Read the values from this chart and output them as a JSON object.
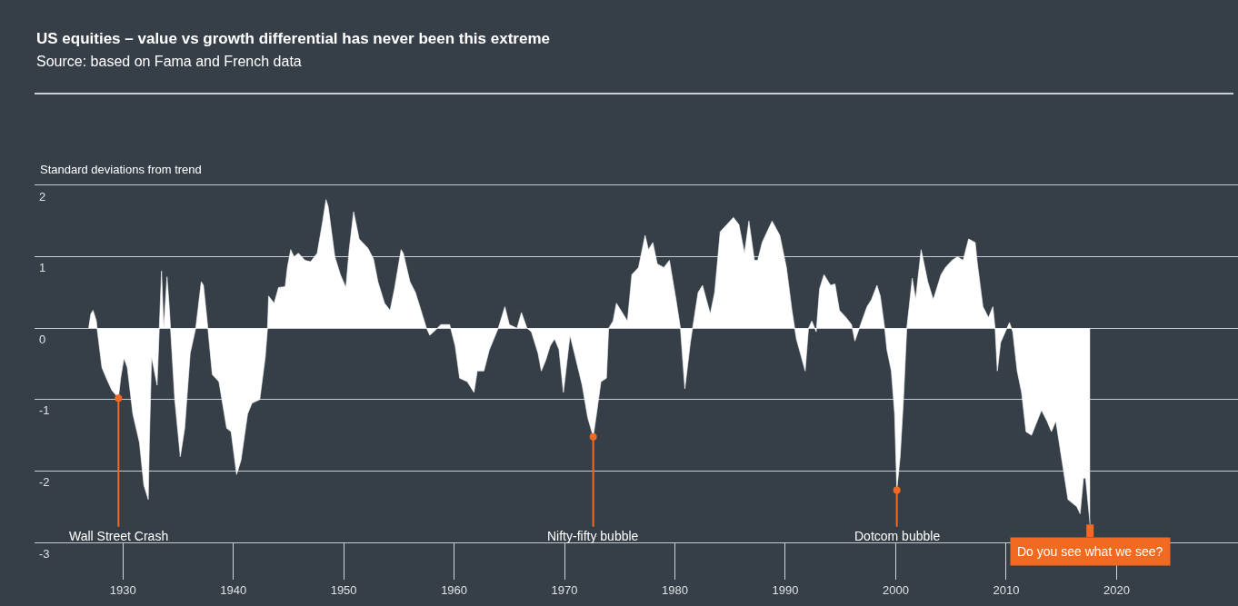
{
  "chart_data": {
    "type": "area",
    "title": "US equities – value vs growth differential has never been this extreme",
    "subtitle": "Source: based on Fama and French data",
    "ylabel": "Standard deviations from trend",
    "x": [
      1926.9,
      1927.1,
      1927.3,
      1927.6,
      1927.7,
      1928.1,
      1928.5,
      1929.0,
      1929.6,
      1929.8,
      1930.1,
      1930.4,
      1930.9,
      1931.5,
      1931.9,
      1932.3,
      1932.4,
      1932.6,
      1933.1,
      1933.3,
      1933.5,
      1933.7,
      1934.0,
      1934.2,
      1934.7,
      1935.2,
      1935.6,
      1936.1,
      1936.6,
      1937.1,
      1937.3,
      1937.7,
      1938.1,
      1938.7,
      1939.4,
      1939.8,
      1940.3,
      1940.7,
      1941.3,
      1941.7,
      1942.4,
      1942.9,
      1943.1,
      1943.2,
      1943.7,
      1944.1,
      1944.7,
      1944.9,
      1945.2,
      1945.5,
      1945.9,
      1946.5,
      1947.0,
      1947.6,
      1948.1,
      1948.4,
      1948.6,
      1949.2,
      1949.7,
      1950.2,
      1950.5,
      1950.9,
      1951.4,
      1952.2,
      1952.7,
      1953.1,
      1953.7,
      1954.2,
      1954.6,
      1955.2,
      1955.4,
      1956.0,
      1956.5,
      1957.1,
      1957.5,
      1957.8,
      1958.3,
      1958.8,
      1959.0,
      1959.6,
      1960.1,
      1960.5,
      1961.2,
      1961.8,
      1962.1,
      1962.7,
      1963.2,
      1964.0,
      1964.6,
      1965.0,
      1965.7,
      1966.1,
      1966.6,
      1967.0,
      1967.6,
      1967.9,
      1968.3,
      1968.7,
      1969.1,
      1969.5,
      1969.9,
      1970.2,
      1970.5,
      1970.9,
      1971.6,
      1972.1,
      1972.6,
      1972.9,
      1973.3,
      1973.8,
      1974.0,
      1974.4,
      1974.7,
      1975.1,
      1975.7,
      1976.1,
      1976.7,
      1977.3,
      1977.6,
      1978.0,
      1978.4,
      1979.0,
      1979.5,
      1980.1,
      1980.5,
      1980.9,
      1981.4,
      1981.8,
      1982.1,
      1982.5,
      1983.2,
      1983.6,
      1984.1,
      1984.7,
      1985.3,
      1985.8,
      1986.3,
      1986.7,
      1987.2,
      1987.5,
      1987.9,
      1988.8,
      1989.5,
      1990.1,
      1990.6,
      1991.0,
      1991.8,
      1992.1,
      1992.4,
      1992.8,
      1993.1,
      1993.5,
      1994.1,
      1994.5,
      1994.9,
      1995.5,
      1996.0,
      1996.3,
      1996.7,
      1997.4,
      1997.8,
      1998.3,
      1998.6,
      1999.0,
      1999.2,
      1999.6,
      1999.9,
      2000.1,
      2000.4,
      2000.7,
      2001.0,
      2001.5,
      2001.8,
      2002.3,
      2002.9,
      2003.4,
      2004.1,
      2004.5,
      2005.1,
      2005.6,
      2006.1,
      2006.6,
      2007.2,
      2007.4,
      2007.9,
      2008.4,
      2008.8,
      2009.0,
      2009.2,
      2009.5,
      2010.3,
      2010.6,
      2011.0,
      2011.4,
      2011.8,
      2012.3,
      2013.2,
      2013.7,
      2014.1,
      2014.5,
      2015.0,
      2015.6,
      2016.4,
      2016.7,
      2017.0,
      2017.2,
      2017.6
    ],
    "values": [
      0,
      0.2,
      0.25,
      0.1,
      -0.05,
      -0.55,
      -0.7,
      -0.87,
      -0.98,
      -0.7,
      -0.42,
      -0.55,
      -1.2,
      -1.6,
      -2.2,
      -2.4,
      -1.6,
      -0.4,
      -0.8,
      0,
      0.8,
      0,
      0.72,
      0.3,
      -1.0,
      -1.8,
      -1.4,
      -0.35,
      0,
      0.65,
      0.6,
      0,
      -0.65,
      -0.75,
      -1.4,
      -1.45,
      -2.05,
      -1.85,
      -1.2,
      -1.05,
      -1.0,
      -0.4,
      0,
      0.45,
      0.35,
      0.57,
      0.58,
      0.85,
      1.1,
      1.0,
      1.05,
      0.95,
      0.93,
      1.05,
      1.5,
      1.8,
      1.7,
      1.0,
      0.75,
      0.57,
      1.1,
      1.63,
      1.25,
      1.12,
      0.97,
      0.65,
      0.35,
      0.25,
      0.55,
      1.1,
      1.05,
      0.65,
      0.5,
      0.2,
      0,
      -0.1,
      -0.03,
      0.05,
      0.05,
      0.05,
      -0.25,
      -0.7,
      -0.75,
      -0.9,
      -0.6,
      -0.6,
      -0.3,
      0,
      0.3,
      0.05,
      0,
      0.22,
      0,
      -0.05,
      -0.35,
      -0.6,
      -0.45,
      -0.25,
      -0.15,
      -0.3,
      -0.9,
      -0.5,
      -0.1,
      -0.35,
      -0.8,
      -1.25,
      -1.52,
      -1.2,
      -0.75,
      -0.7,
      0,
      0.1,
      0.35,
      0.25,
      0.1,
      0.75,
      0.85,
      1.3,
      1.1,
      1.2,
      0.9,
      0.85,
      0.95,
      0.4,
      0,
      -0.85,
      -0.2,
      0.2,
      0.5,
      0.6,
      0.2,
      0.5,
      1.35,
      1.45,
      1.55,
      1.45,
      1.05,
      1.5,
      0.95,
      0.95,
      1.2,
      1.5,
      1.3,
      0.85,
      0.25,
      -0.15,
      -0.6,
      0,
      0.1,
      -0.05,
      0.55,
      0.75,
      0.6,
      0.62,
      0.25,
      0.15,
      0.05,
      -0.18,
      0,
      0.3,
      0.4,
      0.6,
      0.45,
      0,
      -0.3,
      -0.6,
      -1.2,
      -2.27,
      -1.8,
      -1.0,
      0,
      0.7,
      0.4,
      1.1,
      0.65,
      0.4,
      0.75,
      0.85,
      0.95,
      1.0,
      0.95,
      1.25,
      1.2,
      0.9,
      0.3,
      0.15,
      0.3,
      0,
      -0.6,
      -0.2,
      0.08,
      -0.05,
      -0.6,
      -0.9,
      -1.45,
      -1.5,
      -1.15,
      -1.3,
      -1.45,
      -1.3,
      -1.8,
      -2.4,
      -2.5,
      -2.6,
      -2.1,
      -2.1,
      -2.75
    ],
    "color": "#ffffff",
    "xlim": [
      1922,
      2031
    ],
    "xticks": [
      1930,
      1940,
      1950,
      1960,
      1970,
      1980,
      1990,
      2000,
      2010,
      2020
    ],
    "ylim": [
      -3,
      2
    ],
    "yticks": [
      -3,
      -2,
      -1,
      0,
      1,
      2
    ],
    "grid": "y",
    "annotations": [
      {
        "text": "Wall Street Crash",
        "x": 1929.6,
        "y": -0.98
      },
      {
        "text": "Nifty-fifty bubble",
        "x": 1972.6,
        "y": -1.52
      },
      {
        "text": "Dotcom bubble",
        "x": 2000.1,
        "y": -2.27
      },
      {
        "text": "Do you see what we see?",
        "x": 2017.6,
        "y": -2.75
      }
    ]
  }
}
